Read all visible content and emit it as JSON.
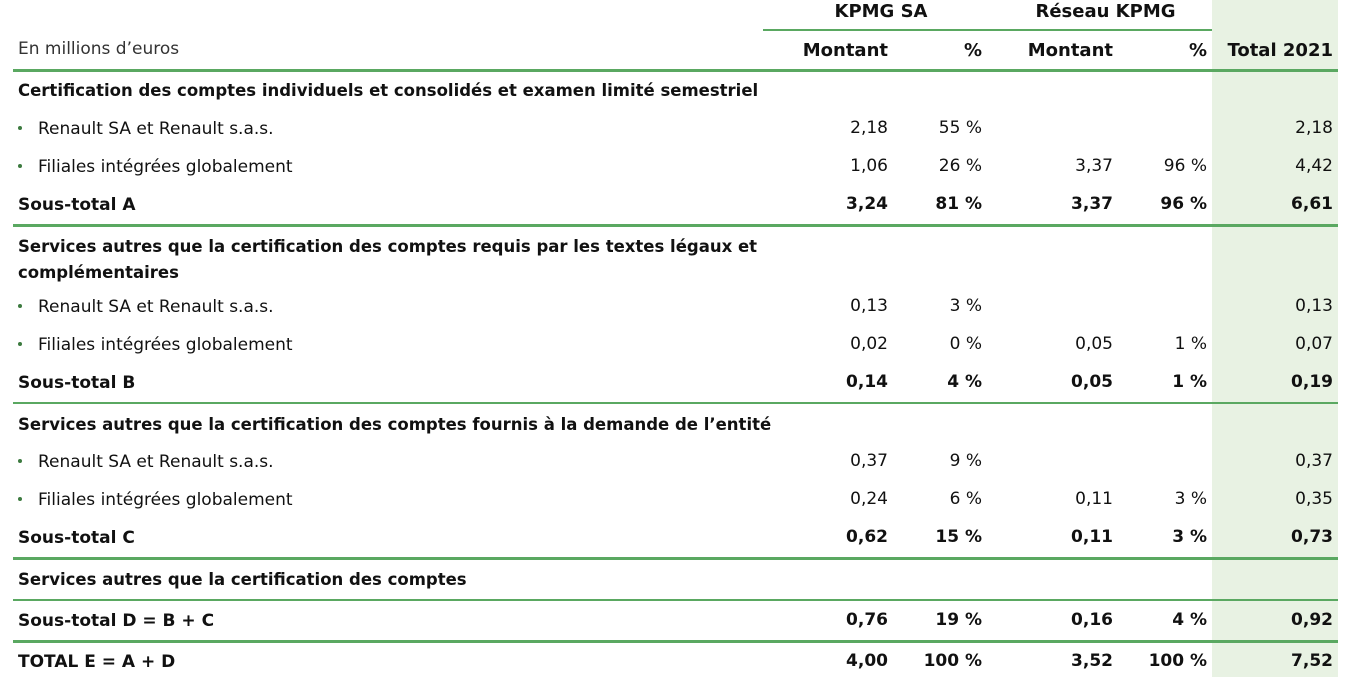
{
  "header": {
    "group_kpmg_sa": "KPMG SA",
    "group_reseau": "Réseau KPMG",
    "unit_label": "En millions d’euros",
    "col_montant_1": "Montant",
    "col_pct_1": "%",
    "col_montant_2": "Montant",
    "col_pct_2": "%",
    "col_total": "Total 2021"
  },
  "rows": [
    {
      "type": "section",
      "label": "Certification des comptes individuels et consolidés et examen limité semestriel",
      "values": [
        "",
        "",
        "",
        "",
        ""
      ]
    },
    {
      "type": "item",
      "label": "Renault SA et Renault s.a.s.",
      "values": [
        "2,18",
        "55 %",
        "",
        "",
        "2,18"
      ]
    },
    {
      "type": "item",
      "label": "Filiales intégrées globalement",
      "values": [
        "1,06",
        "26 %",
        "3,37",
        "96 %",
        "4,42"
      ]
    },
    {
      "type": "sub",
      "label": "Sous-total A",
      "values": [
        "3,24",
        "81 %",
        "3,37",
        "96 %",
        "6,61"
      ]
    },
    {
      "type": "section",
      "label": "Services autres que la certification des comptes requis par les textes légaux et complémentaires",
      "values": [
        "",
        "",
        "",
        "",
        ""
      ]
    },
    {
      "type": "item",
      "label": "Renault SA et Renault s.a.s.",
      "values": [
        "0,13",
        "3 %",
        "",
        "",
        "0,13"
      ]
    },
    {
      "type": "item",
      "label": "Filiales intégrées globalement",
      "values": [
        "0,02",
        "0 %",
        "0,05",
        "1 %",
        "0,07"
      ]
    },
    {
      "type": "sub",
      "label": "Sous-total B",
      "values": [
        "0,14",
        "4 %",
        "0,05",
        "1 %",
        "0,19"
      ]
    },
    {
      "type": "section",
      "label": "Services autres que la certification des comptes fournis à la demande de l’entité",
      "values": [
        "",
        "",
        "",
        "",
        ""
      ]
    },
    {
      "type": "item",
      "label": "Renault SA et Renault s.a.s.",
      "values": [
        "0,37",
        "9 %",
        "",
        "",
        "0,37"
      ]
    },
    {
      "type": "item",
      "label": "Filiales intégrées globalement",
      "values": [
        "0,24",
        "6 %",
        "0,11",
        "3 %",
        "0,35"
      ]
    },
    {
      "type": "sub",
      "label": "Sous-total C",
      "values": [
        "0,62",
        "15 %",
        "0,11",
        "3 %",
        "0,73"
      ]
    },
    {
      "type": "section",
      "label": "Services autres que la certification des comptes",
      "values": [
        "",
        "",
        "",
        "",
        ""
      ]
    },
    {
      "type": "sub",
      "label": "Sous-total D = B + C",
      "values": [
        "0,76",
        "19 %",
        "0,16",
        "4 %",
        "0,92"
      ]
    },
    {
      "type": "sub",
      "label": "TOTAL E = A + D",
      "values": [
        "4,00",
        "100 %",
        "3,52",
        "100 %",
        "7,52"
      ]
    }
  ],
  "colors": {
    "accent": "#5aa861",
    "total_column_bg": "#e8f2e3",
    "bullet": "#3c7a3f"
  }
}
